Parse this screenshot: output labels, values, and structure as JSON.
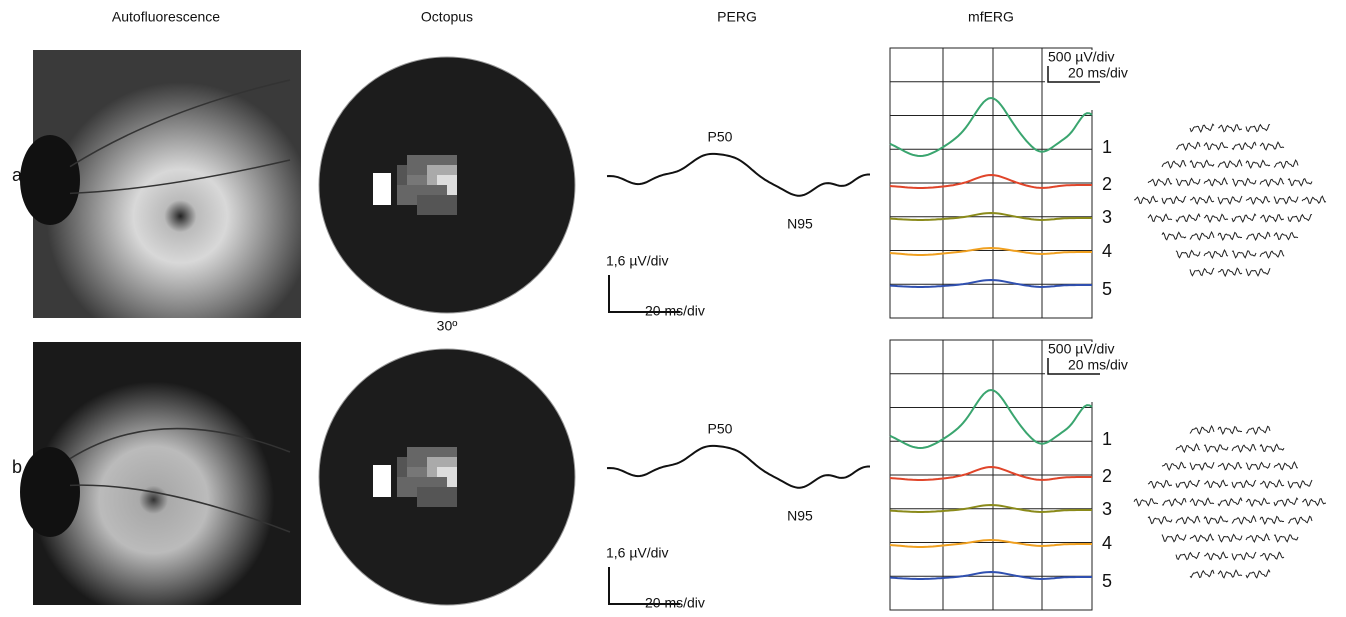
{
  "headers": [
    "Autofluorescence",
    "Octopus",
    "PERG",
    "mfERG"
  ],
  "octopus_scale": "30º",
  "panels": [
    {
      "label": "a",
      "perg": {
        "peak": "P50",
        "trough": "N95",
        "y_scale": "1,6 µV/div",
        "x_scale": "20 ms/div"
      },
      "mferg": {
        "y_scale": "500 µV/div",
        "x_scale": "20 ms/div",
        "rings": [
          "1",
          "2",
          "3",
          "4",
          "5"
        ]
      }
    },
    {
      "label": "b",
      "perg": {
        "peak": "P50",
        "trough": "N95",
        "y_scale": "1,6 µV/div",
        "x_scale": "20 ms/div"
      },
      "mferg": {
        "y_scale": "500 µV/div",
        "x_scale": "20 ms/div",
        "rings": [
          "1",
          "2",
          "3",
          "4",
          "5"
        ]
      }
    }
  ]
}
